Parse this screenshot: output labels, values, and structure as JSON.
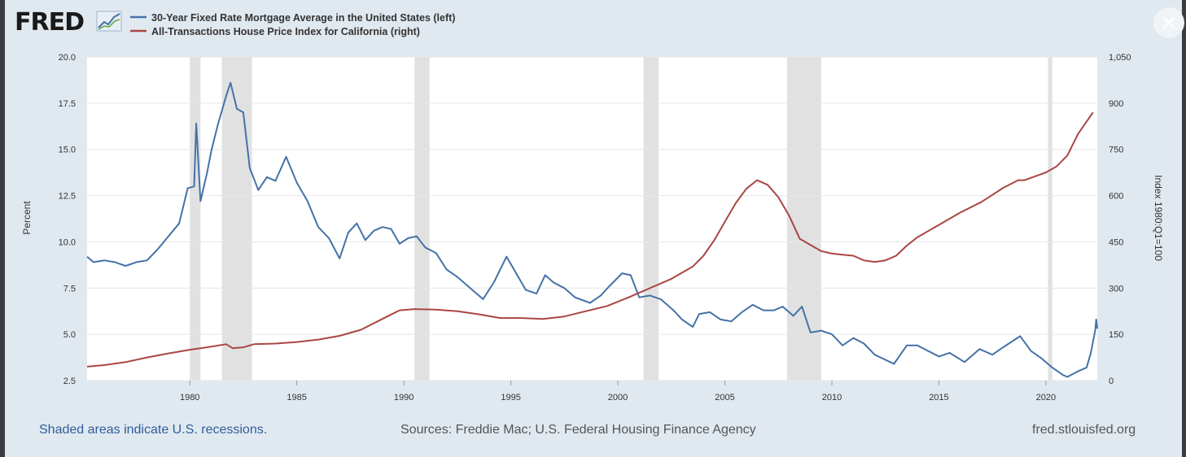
{
  "logo": {
    "text": "FRED",
    "icon": "chart-trend-icon"
  },
  "legend": [
    {
      "label": "30-Year Fixed Rate Mortgage Average in the United States (left)",
      "color": "#4572a7"
    },
    {
      "label": "All-Transactions House Price Index for California (right)",
      "color": "#aa4643"
    }
  ],
  "footer": {
    "recession_note": "Shaded areas indicate U.S. recessions.",
    "sources": "Sources: Freddie Mac; U.S. Federal Housing Finance Agency",
    "site": "fred.stlouisfed.org"
  },
  "close_icon": "close-icon",
  "chart_data": {
    "type": "line",
    "x_unit": "year",
    "xlim": [
      1975.2,
      2022.4
    ],
    "x_ticks": [
      1980,
      1985,
      1990,
      1995,
      2000,
      2005,
      2010,
      2015,
      2020
    ],
    "y_left": {
      "label": "Percent",
      "ylim": [
        2.5,
        20.0
      ],
      "ticks": [
        "2.5",
        "5.0",
        "7.5",
        "10.0",
        "12.5",
        "15.0",
        "17.5",
        "20.0"
      ]
    },
    "y_right": {
      "label": "Index 1980:Q1=100",
      "ylim": [
        0,
        1050
      ],
      "ticks": [
        "0",
        "150",
        "300",
        "450",
        "600",
        "750",
        "900",
        "1,050"
      ]
    },
    "grid": true,
    "recessions": [
      [
        1980.0,
        1980.5
      ],
      [
        1981.5,
        1982.9
      ],
      [
        1990.5,
        1991.2
      ],
      [
        2001.2,
        2001.9
      ],
      [
        2007.9,
        2009.5
      ],
      [
        2020.1,
        2020.3
      ]
    ],
    "series": [
      {
        "name": "30-Year Fixed Rate Mortgage Average in the United States (left)",
        "axis": "left",
        "color": "#4572a7",
        "points": [
          [
            1975.2,
            9.2
          ],
          [
            1975.5,
            8.9
          ],
          [
            1976.0,
            9.0
          ],
          [
            1976.5,
            8.9
          ],
          [
            1977.0,
            8.7
          ],
          [
            1977.5,
            8.9
          ],
          [
            1978.0,
            9.0
          ],
          [
            1978.5,
            9.6
          ],
          [
            1979.0,
            10.3
          ],
          [
            1979.5,
            11.0
          ],
          [
            1979.9,
            12.9
          ],
          [
            1980.2,
            13.0
          ],
          [
            1980.3,
            16.4
          ],
          [
            1980.5,
            12.2
          ],
          [
            1980.8,
            13.7
          ],
          [
            1981.0,
            14.9
          ],
          [
            1981.3,
            16.3
          ],
          [
            1981.7,
            17.9
          ],
          [
            1981.9,
            18.6
          ],
          [
            1982.2,
            17.2
          ],
          [
            1982.5,
            17.0
          ],
          [
            1982.8,
            14.0
          ],
          [
            1983.2,
            12.8
          ],
          [
            1983.6,
            13.5
          ],
          [
            1984.0,
            13.3
          ],
          [
            1984.5,
            14.6
          ],
          [
            1985.0,
            13.2
          ],
          [
            1985.5,
            12.2
          ],
          [
            1986.0,
            10.8
          ],
          [
            1986.5,
            10.2
          ],
          [
            1987.0,
            9.1
          ],
          [
            1987.4,
            10.5
          ],
          [
            1987.8,
            11.0
          ],
          [
            1988.2,
            10.1
          ],
          [
            1988.6,
            10.6
          ],
          [
            1989.0,
            10.8
          ],
          [
            1989.4,
            10.7
          ],
          [
            1989.8,
            9.9
          ],
          [
            1990.2,
            10.2
          ],
          [
            1990.6,
            10.3
          ],
          [
            1991.0,
            9.7
          ],
          [
            1991.5,
            9.4
          ],
          [
            1992.0,
            8.5
          ],
          [
            1992.5,
            8.1
          ],
          [
            1993.0,
            7.6
          ],
          [
            1993.7,
            6.9
          ],
          [
            1994.2,
            7.8
          ],
          [
            1994.8,
            9.2
          ],
          [
            1995.2,
            8.4
          ],
          [
            1995.7,
            7.4
          ],
          [
            1996.2,
            7.2
          ],
          [
            1996.6,
            8.2
          ],
          [
            1997.0,
            7.8
          ],
          [
            1997.5,
            7.5
          ],
          [
            1998.0,
            7.0
          ],
          [
            1998.7,
            6.7
          ],
          [
            1999.2,
            7.1
          ],
          [
            1999.6,
            7.6
          ],
          [
            2000.2,
            8.3
          ],
          [
            2000.6,
            8.2
          ],
          [
            2001.0,
            7.0
          ],
          [
            2001.5,
            7.1
          ],
          [
            2002.0,
            6.9
          ],
          [
            2002.6,
            6.3
          ],
          [
            2003.0,
            5.8
          ],
          [
            2003.5,
            5.4
          ],
          [
            2003.8,
            6.1
          ],
          [
            2004.3,
            6.2
          ],
          [
            2004.8,
            5.8
          ],
          [
            2005.3,
            5.7
          ],
          [
            2005.8,
            6.2
          ],
          [
            2006.3,
            6.6
          ],
          [
            2006.8,
            6.3
          ],
          [
            2007.3,
            6.3
          ],
          [
            2007.7,
            6.5
          ],
          [
            2008.2,
            6.0
          ],
          [
            2008.6,
            6.5
          ],
          [
            2009.0,
            5.1
          ],
          [
            2009.5,
            5.2
          ],
          [
            2010.0,
            5.0
          ],
          [
            2010.5,
            4.4
          ],
          [
            2011.0,
            4.8
          ],
          [
            2011.5,
            4.5
          ],
          [
            2012.0,
            3.9
          ],
          [
            2012.9,
            3.4
          ],
          [
            2013.5,
            4.4
          ],
          [
            2014.0,
            4.4
          ],
          [
            2014.5,
            4.1
          ],
          [
            2015.0,
            3.8
          ],
          [
            2015.5,
            4.0
          ],
          [
            2016.2,
            3.5
          ],
          [
            2016.9,
            4.2
          ],
          [
            2017.5,
            3.9
          ],
          [
            2018.0,
            4.3
          ],
          [
            2018.8,
            4.9
          ],
          [
            2019.3,
            4.1
          ],
          [
            2019.8,
            3.7
          ],
          [
            2020.3,
            3.2
          ],
          [
            2020.8,
            2.8
          ],
          [
            2021.0,
            2.7
          ],
          [
            2021.5,
            3.0
          ],
          [
            2021.9,
            3.2
          ],
          [
            2022.1,
            4.0
          ],
          [
            2022.3,
            5.2
          ],
          [
            2022.35,
            5.8
          ],
          [
            2022.4,
            5.3
          ]
        ]
      },
      {
        "name": "All-Transactions House Price Index for California (right)",
        "axis": "right",
        "color": "#aa4643",
        "points": [
          [
            1975.2,
            45
          ],
          [
            1976.0,
            50
          ],
          [
            1977.0,
            60
          ],
          [
            1978.0,
            75
          ],
          [
            1979.0,
            88
          ],
          [
            1980.0,
            100
          ],
          [
            1981.0,
            110
          ],
          [
            1981.7,
            118
          ],
          [
            1982.0,
            105
          ],
          [
            1982.5,
            108
          ],
          [
            1983.0,
            118
          ],
          [
            1984.0,
            120
          ],
          [
            1985.0,
            125
          ],
          [
            1986.0,
            133
          ],
          [
            1987.0,
            145
          ],
          [
            1988.0,
            165
          ],
          [
            1989.0,
            200
          ],
          [
            1989.8,
            228
          ],
          [
            1990.5,
            232
          ],
          [
            1991.5,
            230
          ],
          [
            1992.5,
            225
          ],
          [
            1993.5,
            215
          ],
          [
            1994.5,
            203
          ],
          [
            1995.5,
            203
          ],
          [
            1996.5,
            200
          ],
          [
            1997.5,
            208
          ],
          [
            1998.5,
            225
          ],
          [
            1999.5,
            242
          ],
          [
            2000.5,
            270
          ],
          [
            2001.5,
            300
          ],
          [
            2002.5,
            330
          ],
          [
            2003.5,
            370
          ],
          [
            2004.0,
            405
          ],
          [
            2004.5,
            455
          ],
          [
            2005.0,
            515
          ],
          [
            2005.5,
            575
          ],
          [
            2006.0,
            622
          ],
          [
            2006.5,
            650
          ],
          [
            2007.0,
            635
          ],
          [
            2007.5,
            595
          ],
          [
            2008.0,
            535
          ],
          [
            2008.5,
            460
          ],
          [
            2009.0,
            440
          ],
          [
            2009.5,
            420
          ],
          [
            2010.0,
            412
          ],
          [
            2010.5,
            408
          ],
          [
            2011.0,
            405
          ],
          [
            2011.5,
            390
          ],
          [
            2012.0,
            385
          ],
          [
            2012.5,
            390
          ],
          [
            2013.0,
            405
          ],
          [
            2013.5,
            438
          ],
          [
            2014.0,
            465
          ],
          [
            2015.0,
            505
          ],
          [
            2016.0,
            545
          ],
          [
            2017.0,
            580
          ],
          [
            2018.0,
            625
          ],
          [
            2018.7,
            650
          ],
          [
            2019.0,
            650
          ],
          [
            2020.0,
            675
          ],
          [
            2020.5,
            695
          ],
          [
            2021.0,
            730
          ],
          [
            2021.5,
            800
          ],
          [
            2022.2,
            870
          ]
        ]
      }
    ]
  }
}
